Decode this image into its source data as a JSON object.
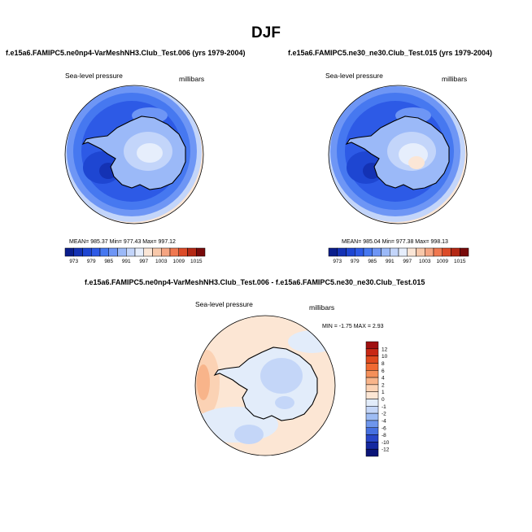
{
  "page": {
    "title": "DJF"
  },
  "chart_data": [
    {
      "type": "heatmap",
      "projection": "south-polar-stereographic",
      "title": "f.e15a6.FAMIPC5.ne0np4-VarMeshNH3.Club_Test.006 (yrs 1979-2004)",
      "left_label": "Sea-level pressure",
      "right_label": "millibars",
      "stats": {
        "mean": 985.37,
        "min": 977.43,
        "max": 997.12
      },
      "stats_text": "MEAN= 985.37  Min= 977.43  Max= 997.12",
      "colorbar": {
        "orientation": "horizontal",
        "tick_labels": [
          "973",
          "979",
          "985",
          "991",
          "997",
          "1003",
          "1009",
          "1015"
        ],
        "colors": [
          "#0a1e8c",
          "#1432b4",
          "#1e46d2",
          "#2d5ae6",
          "#4678f0",
          "#6e96f5",
          "#9bb9f8",
          "#c3d5fa",
          "#e6eefc",
          "#fbe6d6",
          "#f8c8aa",
          "#f5a582",
          "#f07850",
          "#dc4b28",
          "#b42814",
          "#780a0a"
        ]
      }
    },
    {
      "type": "heatmap",
      "projection": "south-polar-stereographic",
      "title": "f.e15a6.FAMIPC5.ne30_ne30.Club_Test.015 (yrs 1979-2004)",
      "left_label": "Sea-level pressure",
      "right_label": "millibars",
      "stats": {
        "mean": 985.04,
        "min": 977.38,
        "max": 998.13
      },
      "stats_text": "MEAN= 985.04  Min= 977.38  Max= 998.13",
      "colorbar": {
        "orientation": "horizontal",
        "tick_labels": [
          "973",
          "979",
          "985",
          "991",
          "997",
          "1003",
          "1009",
          "1015"
        ],
        "colors": [
          "#0a1e8c",
          "#1432b4",
          "#1e46d2",
          "#2d5ae6",
          "#4678f0",
          "#6e96f5",
          "#9bb9f8",
          "#c3d5fa",
          "#e6eefc",
          "#fbe6d6",
          "#f8c8aa",
          "#f5a582",
          "#f07850",
          "#dc4b28",
          "#b42814",
          "#780a0a"
        ]
      }
    },
    {
      "type": "heatmap",
      "projection": "south-polar-stereographic",
      "title": "f.e15a6.FAMIPC5.ne0np4-VarMeshNH3.Club_Test.006 - f.e15a6.FAMIPC5.ne30_ne30.Club_Test.015",
      "left_label": "Sea-level pressure",
      "right_label": "millibars",
      "stats": {
        "min": -1.75,
        "max": 2.93
      },
      "stats_text": "MIN = -1.75 MAX =  2.93",
      "colorbar": {
        "orientation": "vertical",
        "tick_labels": [
          "12",
          "10",
          "8",
          "6",
          "4",
          "2",
          "1",
          "0",
          "-1",
          "-2",
          "-4",
          "-6",
          "-8",
          "-10",
          "-12"
        ],
        "colors": [
          "#a01010",
          "#c82814",
          "#e04a1e",
          "#f06a32",
          "#f5905a",
          "#f8b48a",
          "#fbd2b4",
          "#fce6d4",
          "#e2ecfa",
          "#c4d6f8",
          "#9ebcf4",
          "#6e96ec",
          "#4670e0",
          "#2846c8",
          "#1428a0",
          "#0a1478"
        ]
      }
    }
  ]
}
